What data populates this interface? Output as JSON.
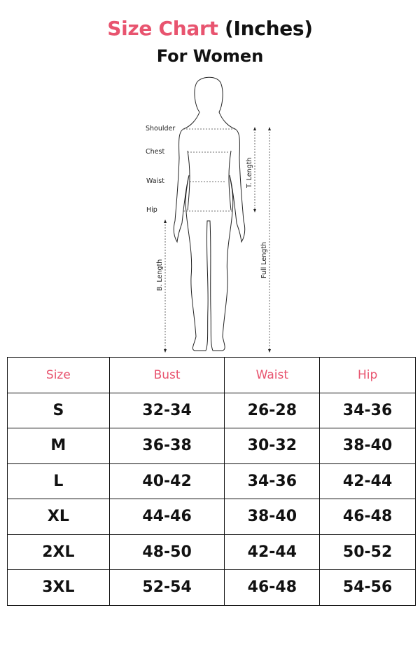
{
  "colors": {
    "accent": "#e8546f",
    "text": "#111111"
  },
  "title": {
    "accent_text": "Size Chart",
    "rest_text": " (Inches)"
  },
  "subtitle": "For Women",
  "figure": {
    "labels": {
      "shoulder": "Shoulder",
      "chest": "Chest",
      "waist": "Waist",
      "hip": "Hip",
      "t_length": "T. Length",
      "b_length": "B. Length",
      "full_length": "Full Length"
    }
  },
  "table": {
    "headers": [
      "Size",
      "Bust",
      "Waist",
      "Hip"
    ],
    "rows": [
      [
        "S",
        "32-34",
        "26-28",
        "34-36"
      ],
      [
        "M",
        "36-38",
        "30-32",
        "38-40"
      ],
      [
        "L",
        "40-42",
        "34-36",
        "42-44"
      ],
      [
        "XL",
        "44-46",
        "38-40",
        "46-48"
      ],
      [
        "2XL",
        "48-50",
        "42-44",
        "50-52"
      ],
      [
        "3XL",
        "52-54",
        "46-48",
        "54-56"
      ]
    ]
  }
}
